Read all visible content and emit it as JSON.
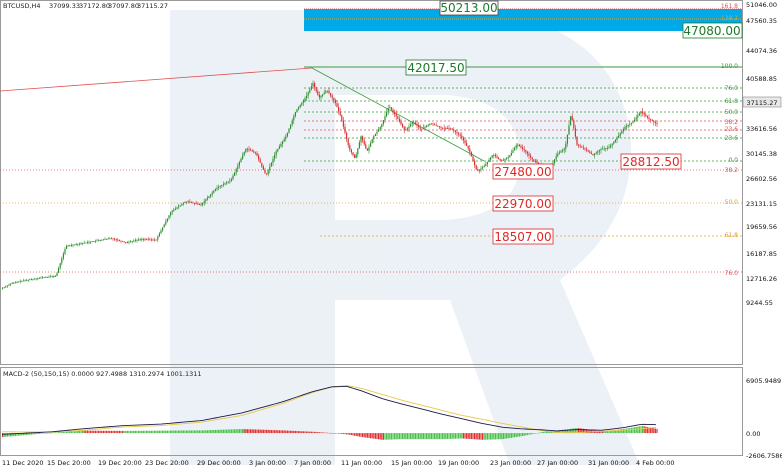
{
  "chart_data": [
    {
      "type": "candlestick",
      "title": "BTCUSD,H4",
      "ohlc_readout": [
        "37099.33",
        "37172.80",
        "37097.80",
        "37115.27"
      ],
      "current_price": "37115.27",
      "ylim": [
        9244.5,
        51045.6
      ],
      "y_ticks": [
        "51046.00",
        "47560.35",
        "44074.36",
        "40588.85",
        "37115.27",
        "33616.56",
        "30145.38",
        "26602.56",
        "23131.15",
        "19659.56",
        "16187.85",
        "12716.26",
        "9244.55"
      ],
      "x_ticks": [
        "11 Dec 2020",
        "15 Dec 20:00",
        "19 Dec 20:00",
        "23 Dec 20:00",
        "29 Dec 00:00",
        "3 Jan 00:00",
        "7 Jan 00:00",
        "11 Jan 00:00",
        "15 Jan 00:00",
        "19 Jan 00:00",
        "23 Jan 00:00",
        "27 Jan 00:00",
        "31 Jan 00:00",
        "4 Feb 00:00"
      ],
      "price_path": [
        [
          0,
          17800
        ],
        [
          10,
          18400
        ],
        [
          20,
          18700
        ],
        [
          30,
          18900
        ],
        [
          40,
          19100
        ],
        [
          55,
          19300
        ],
        [
          65,
          22800
        ],
        [
          80,
          23100
        ],
        [
          95,
          23400
        ],
        [
          110,
          23700
        ],
        [
          125,
          23200
        ],
        [
          140,
          23600
        ],
        [
          155,
          23500
        ],
        [
          170,
          26800
        ],
        [
          185,
          28000
        ],
        [
          200,
          27600
        ],
        [
          215,
          29500
        ],
        [
          230,
          30500
        ],
        [
          245,
          34200
        ],
        [
          255,
          33600
        ],
        [
          265,
          31000
        ],
        [
          275,
          33800
        ],
        [
          285,
          35600
        ],
        [
          295,
          38600
        ],
        [
          305,
          40200
        ],
        [
          312,
          41800
        ],
        [
          318,
          40100
        ],
        [
          326,
          41000
        ],
        [
          334,
          39600
        ],
        [
          340,
          37800
        ],
        [
          348,
          34200
        ],
        [
          354,
          33000
        ],
        [
          360,
          35600
        ],
        [
          366,
          33800
        ],
        [
          372,
          35500
        ],
        [
          380,
          36800
        ],
        [
          388,
          39100
        ],
        [
          396,
          37800
        ],
        [
          404,
          36200
        ],
        [
          412,
          37300
        ],
        [
          420,
          36400
        ],
        [
          430,
          37100
        ],
        [
          440,
          36600
        ],
        [
          450,
          36500
        ],
        [
          460,
          35600
        ],
        [
          468,
          34000
        ],
        [
          476,
          31500
        ],
        [
          484,
          32200
        ],
        [
          492,
          33500
        ],
        [
          500,
          32700
        ],
        [
          508,
          33200
        ],
        [
          516,
          34700
        ],
        [
          524,
          33900
        ],
        [
          532,
          32800
        ],
        [
          540,
          32200
        ],
        [
          548,
          31500
        ],
        [
          556,
          33500
        ],
        [
          564,
          34200
        ],
        [
          570,
          38200
        ],
        [
          576,
          34600
        ],
        [
          584,
          34100
        ],
        [
          592,
          33400
        ],
        [
          600,
          34100
        ],
        [
          608,
          34300
        ],
        [
          616,
          35400
        ],
        [
          624,
          36700
        ],
        [
          632,
          37300
        ],
        [
          640,
          38500
        ],
        [
          648,
          37600
        ],
        [
          655,
          37115
        ]
      ],
      "levels_red": [
        "27480.00",
        "22970.00",
        "18507.00"
      ],
      "level_green": "42017.50",
      "level_target": "28812.50",
      "box_blue": "50213.00",
      "box_green": "47080.00",
      "fib_right_labels": [
        "161.8",
        "138.2",
        "100.0",
        "76.0",
        "61.8",
        "50.0",
        "38.2",
        "23.6",
        "23.6",
        "0.0",
        "38.2",
        "50.0",
        "61.8",
        "76.0"
      ],
      "colors": {
        "bull": "#2f8f2f",
        "bear": "#d83030",
        "fib_red": "#e05050",
        "fib_green": "#3a9a3a",
        "fib_orange": "#e8a020",
        "blue_box": "#00a9e8"
      }
    },
    {
      "type": "histogram",
      "title": "MACD-2 (50,150,15) 0.0000 927.4988 1310.2974 1001.1311",
      "ylim": [
        -2606.7,
        6905.9
      ],
      "y_ticks": [
        "6905.9489",
        "0.00",
        "-2606.7586"
      ],
      "signal_path": [
        [
          0,
          150
        ],
        [
          50,
          120
        ],
        [
          80,
          320
        ],
        [
          120,
          720
        ],
        [
          160,
          900
        ],
        [
          200,
          1300
        ],
        [
          240,
          2100
        ],
        [
          280,
          3500
        ],
        [
          310,
          4800
        ],
        [
          330,
          5500
        ],
        [
          345,
          5650
        ],
        [
          360,
          5300
        ],
        [
          380,
          4600
        ],
        [
          400,
          3900
        ],
        [
          420,
          3300
        ],
        [
          440,
          2700
        ],
        [
          460,
          2100
        ],
        [
          480,
          1650
        ],
        [
          500,
          1150
        ],
        [
          520,
          720
        ],
        [
          540,
          300
        ],
        [
          555,
          60
        ],
        [
          575,
          40
        ],
        [
          600,
          230
        ],
        [
          620,
          330
        ],
        [
          640,
          520
        ],
        [
          655,
          700
        ]
      ],
      "macd_path": [
        [
          0,
          -150
        ],
        [
          50,
          150
        ],
        [
          80,
          500
        ],
        [
          120,
          880
        ],
        [
          160,
          1080
        ],
        [
          200,
          1500
        ],
        [
          240,
          2400
        ],
        [
          280,
          3700
        ],
        [
          310,
          4900
        ],
        [
          330,
          5500
        ],
        [
          345,
          5550
        ],
        [
          360,
          5000
        ],
        [
          380,
          4100
        ],
        [
          400,
          3450
        ],
        [
          420,
          2850
        ],
        [
          440,
          2250
        ],
        [
          460,
          1700
        ],
        [
          480,
          1150
        ],
        [
          500,
          700
        ],
        [
          520,
          500
        ],
        [
          540,
          380
        ],
        [
          555,
          260
        ],
        [
          575,
          420
        ],
        [
          600,
          340
        ],
        [
          620,
          620
        ],
        [
          640,
          1050
        ],
        [
          655,
          1000
        ]
      ],
      "colors": {
        "signal": "#e8c84a",
        "macd": "#1c1c48",
        "pos": "#49c049",
        "neg": "#e03030"
      }
    }
  ]
}
